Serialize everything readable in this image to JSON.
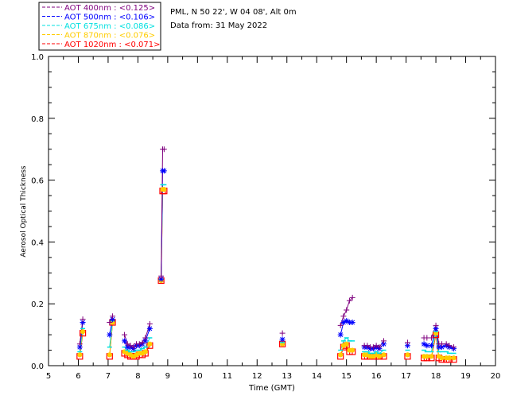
{
  "chart_data": {
    "type": "scatter",
    "station": "PML, N 50 22', W 04 08', Alt 0m",
    "date_text": "Data from: 31 May 2022",
    "xlabel": "Time (GMT)",
    "ylabel": "Aerosol Optical Thickness",
    "xlim": [
      5,
      20
    ],
    "ylim": [
      0,
      1.0
    ],
    "xticks": [
      "5",
      "6",
      "7",
      "8",
      "9",
      "10",
      "11",
      "12",
      "13",
      "14",
      "15",
      "16",
      "17",
      "18",
      "19",
      "20"
    ],
    "yticks": [
      "0.0",
      "0.2",
      "0.4",
      "0.6",
      "0.8",
      "1.0"
    ],
    "series": [
      {
        "name": "AOT  400nm : <0.125>",
        "color": "#7f007f",
        "marker": "plus",
        "x": [
          6.05,
          6.15,
          7.05,
          7.15,
          7.55,
          7.65,
          7.75,
          7.85,
          7.95,
          8.05,
          8.15,
          8.25,
          8.4,
          8.78,
          8.83,
          8.88,
          12.85,
          14.8,
          14.9,
          15.0,
          15.1,
          15.2,
          15.6,
          15.7,
          15.8,
          15.9,
          16.0,
          16.1,
          16.25,
          17.05,
          17.6,
          17.7,
          17.85,
          18.0,
          18.1,
          18.2,
          18.35,
          18.45,
          18.6
        ],
        "y": [
          0.07,
          0.15,
          0.14,
          0.16,
          0.1,
          0.07,
          0.065,
          0.06,
          0.07,
          0.07,
          0.075,
          0.09,
          0.135,
          0.29,
          0.7,
          0.7,
          0.105,
          0.13,
          0.16,
          0.18,
          0.21,
          0.22,
          0.065,
          0.065,
          0.06,
          0.06,
          0.065,
          0.06,
          0.08,
          0.075,
          0.09,
          0.09,
          0.09,
          0.13,
          0.07,
          0.07,
          0.07,
          0.065,
          0.06
        ]
      },
      {
        "name": "AOT  500nm : <0.106>",
        "color": "#0000ff",
        "marker": "star",
        "x": [
          6.05,
          6.15,
          7.05,
          7.15,
          7.55,
          7.65,
          7.75,
          7.85,
          7.95,
          8.05,
          8.15,
          8.25,
          8.4,
          8.78,
          8.83,
          8.88,
          12.85,
          14.8,
          14.9,
          15.0,
          15.1,
          15.2,
          15.6,
          15.7,
          15.8,
          15.9,
          16.0,
          16.1,
          16.25,
          17.05,
          17.6,
          17.7,
          17.85,
          18.0,
          18.1,
          18.2,
          18.35,
          18.45,
          18.6
        ],
        "y": [
          0.06,
          0.14,
          0.1,
          0.15,
          0.08,
          0.06,
          0.06,
          0.055,
          0.065,
          0.065,
          0.07,
          0.08,
          0.12,
          0.28,
          0.63,
          0.63,
          0.085,
          0.1,
          0.14,
          0.145,
          0.14,
          0.14,
          0.06,
          0.06,
          0.055,
          0.055,
          0.06,
          0.055,
          0.07,
          0.065,
          0.07,
          0.065,
          0.065,
          0.12,
          0.06,
          0.06,
          0.065,
          0.06,
          0.055
        ]
      },
      {
        "name": "AOT  675nm : <0.086>",
        "color": "#00e0e0",
        "marker": "dash",
        "x": [
          6.05,
          6.15,
          7.05,
          7.15,
          7.55,
          7.65,
          7.75,
          7.85,
          7.95,
          8.05,
          8.15,
          8.25,
          8.4,
          8.78,
          8.83,
          8.88,
          12.85,
          14.8,
          14.9,
          15.0,
          15.1,
          15.2,
          15.6,
          15.7,
          15.8,
          15.9,
          16.0,
          16.1,
          16.25,
          17.05,
          17.6,
          17.7,
          17.85,
          18.0,
          18.1,
          18.2,
          18.35,
          18.45,
          18.6
        ],
        "y": [
          0.045,
          0.12,
          0.06,
          0.145,
          0.06,
          0.05,
          0.045,
          0.045,
          0.05,
          0.05,
          0.055,
          0.06,
          0.09,
          0.28,
          0.585,
          0.585,
          0.075,
          0.05,
          0.08,
          0.09,
          0.08,
          0.08,
          0.045,
          0.045,
          0.04,
          0.04,
          0.045,
          0.04,
          0.05,
          0.05,
          0.05,
          0.045,
          0.045,
          0.11,
          0.045,
          0.045,
          0.045,
          0.04,
          0.04
        ]
      },
      {
        "name": "AOT  870nm : <0.076>",
        "color": "#ffcc00",
        "marker": "circle",
        "x": [
          6.05,
          6.15,
          7.05,
          7.15,
          7.55,
          7.65,
          7.75,
          7.85,
          7.95,
          8.05,
          8.15,
          8.25,
          8.4,
          8.78,
          8.83,
          8.88,
          12.85,
          14.8,
          14.9,
          15.0,
          15.1,
          15.2,
          15.6,
          15.7,
          15.8,
          15.9,
          16.0,
          16.1,
          16.25,
          17.05,
          17.6,
          17.7,
          17.85,
          18.0,
          18.1,
          18.2,
          18.35,
          18.45,
          18.6
        ],
        "y": [
          0.035,
          0.11,
          0.035,
          0.14,
          0.045,
          0.04,
          0.035,
          0.03,
          0.035,
          0.04,
          0.04,
          0.045,
          0.07,
          0.275,
          0.57,
          0.57,
          0.07,
          0.035,
          0.065,
          0.07,
          0.05,
          0.05,
          0.035,
          0.035,
          0.03,
          0.03,
          0.035,
          0.03,
          0.035,
          0.035,
          0.03,
          0.03,
          0.03,
          0.105,
          0.03,
          0.025,
          0.025,
          0.025,
          0.025
        ]
      },
      {
        "name": "AOT 1020nm : <0.071>",
        "color": "#ff0000",
        "marker": "square",
        "x": [
          6.05,
          6.15,
          7.05,
          7.15,
          7.55,
          7.65,
          7.75,
          7.85,
          7.95,
          8.05,
          8.15,
          8.25,
          8.4,
          8.78,
          8.83,
          8.88,
          12.85,
          14.8,
          14.9,
          15.0,
          15.1,
          15.2,
          15.6,
          15.7,
          15.8,
          15.9,
          16.0,
          16.1,
          16.25,
          17.05,
          17.6,
          17.7,
          17.85,
          18.0,
          18.1,
          18.2,
          18.35,
          18.45,
          18.6
        ],
        "y": [
          0.03,
          0.105,
          0.03,
          0.14,
          0.04,
          0.035,
          0.03,
          0.03,
          0.03,
          0.035,
          0.035,
          0.04,
          0.065,
          0.275,
          0.565,
          0.565,
          0.07,
          0.03,
          0.06,
          0.065,
          0.045,
          0.045,
          0.03,
          0.03,
          0.03,
          0.03,
          0.03,
          0.03,
          0.03,
          0.03,
          0.025,
          0.025,
          0.025,
          0.1,
          0.025,
          0.02,
          0.02,
          0.02,
          0.02
        ]
      }
    ]
  }
}
